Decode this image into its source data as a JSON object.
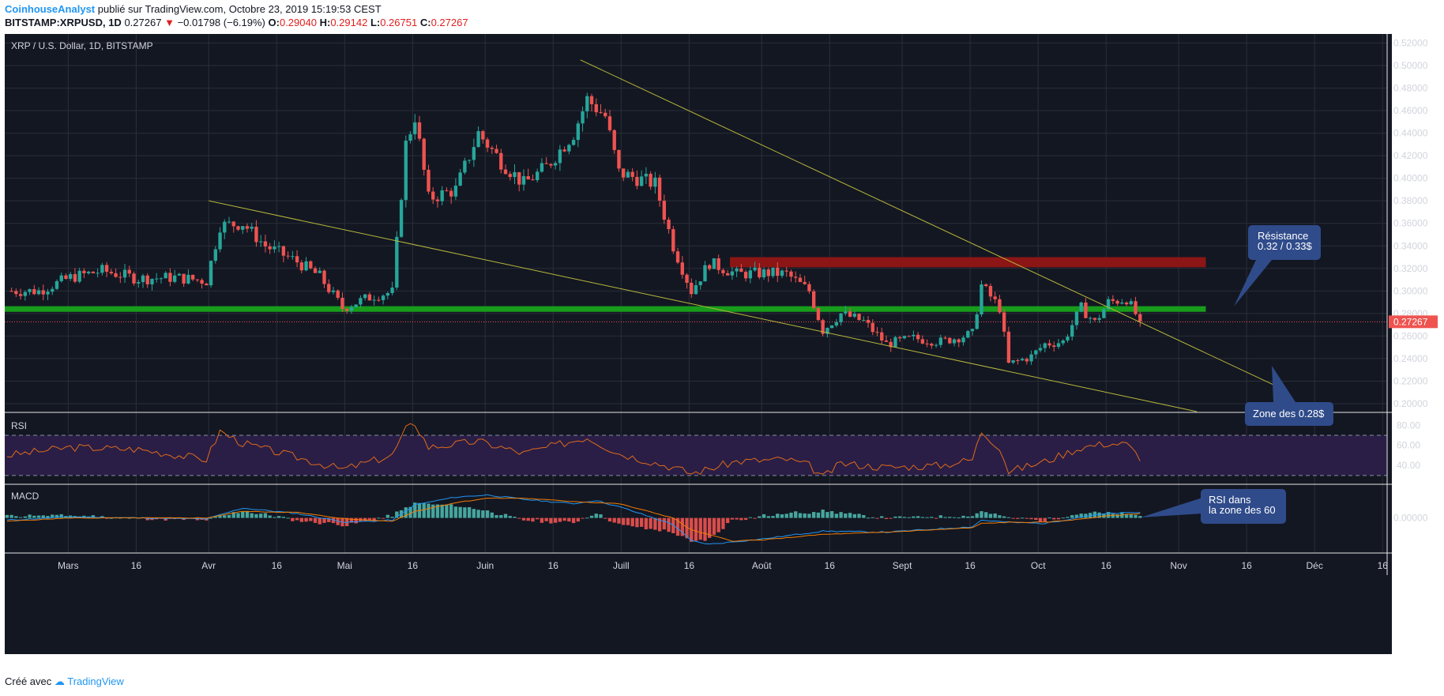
{
  "header": {
    "author": "CoinhouseAnalyst",
    "published": "publié sur TradingView.com, Octobre 23, 2019 15:19:53 CEST",
    "symbol": "BITSTAMP:XRPUSD, 1D",
    "last": "0.27267",
    "change_arrow": "▼",
    "change": "−0.01798 (−6.19%)",
    "open_label": "O:",
    "open": "0.29040",
    "high_label": "H:",
    "high": "0.29142",
    "low_label": "L:",
    "low": "0.26751",
    "close_label": "C:",
    "close": "0.27267"
  },
  "footer": {
    "created_with": "Créé avec",
    "brand": "TradingView"
  },
  "chart_data": {
    "type": "candlestick",
    "title": "XRP / U.S. Dollar, 1D, BITSTAMP",
    "background": "#131722",
    "colors": {
      "up": "#26a69a",
      "down": "#ef5350",
      "grid": "#2a2e39",
      "axis_text": "#d1d4dc",
      "support": "#179c1b",
      "resistance": "#8c1515",
      "trendline": "#b8b83a",
      "rsi": "#e06a1a",
      "macd": "#2196f3",
      "signal": "#f57c00",
      "rsi_band": "#2a1e46",
      "annotation": "#2f4b8a"
    },
    "x_axis": {
      "range": [
        "2019-02-15",
        "2019-12-17"
      ],
      "ticks": [
        {
          "date": "2019-03-01",
          "label": "Mars"
        },
        {
          "date": "2019-03-16",
          "label": "16"
        },
        {
          "date": "2019-04-01",
          "label": "Avr"
        },
        {
          "date": "2019-04-16",
          "label": "16"
        },
        {
          "date": "2019-05-01",
          "label": "Mai"
        },
        {
          "date": "2019-05-16",
          "label": "16"
        },
        {
          "date": "2019-06-01",
          "label": "Juin"
        },
        {
          "date": "2019-06-16",
          "label": "16"
        },
        {
          "date": "2019-07-01",
          "label": "Juill"
        },
        {
          "date": "2019-07-16",
          "label": "16"
        },
        {
          "date": "2019-08-01",
          "label": "Août"
        },
        {
          "date": "2019-08-16",
          "label": "16"
        },
        {
          "date": "2019-09-01",
          "label": "Sept"
        },
        {
          "date": "2019-09-16",
          "label": "16"
        },
        {
          "date": "2019-10-01",
          "label": "Oct"
        },
        {
          "date": "2019-10-16",
          "label": "16"
        },
        {
          "date": "2019-11-01",
          "label": "Nov"
        },
        {
          "date": "2019-11-16",
          "label": "16"
        },
        {
          "date": "2019-12-01",
          "label": "Déc"
        },
        {
          "date": "2019-12-16",
          "label": "16"
        }
      ]
    },
    "price_pane": {
      "ylim": [
        0.193,
        0.528
      ],
      "y_ticks": [
        "0.20000",
        "0.22000",
        "0.24000",
        "0.26000",
        "0.28000",
        "0.30000",
        "0.32000",
        "0.34000",
        "0.36000",
        "0.38000",
        "0.40000",
        "0.42000",
        "0.44000",
        "0.46000",
        "0.48000",
        "0.50000",
        "0.52000"
      ],
      "last_price": "0.27267",
      "closes": [
        [
          "2019-02-15",
          0.3
        ],
        [
          "2019-02-22",
          0.3
        ],
        [
          "2019-03-01",
          0.312
        ],
        [
          "2019-03-08",
          0.318
        ],
        [
          "2019-03-16",
          0.311
        ],
        [
          "2019-03-24",
          0.312
        ],
        [
          "2019-03-31",
          0.309
        ],
        [
          "2019-04-03",
          0.358
        ],
        [
          "2019-04-08",
          0.36
        ],
        [
          "2019-04-13",
          0.34
        ],
        [
          "2019-04-20",
          0.326
        ],
        [
          "2019-04-25",
          0.313
        ],
        [
          "2019-04-30",
          0.285
        ],
        [
          "2019-05-07",
          0.296
        ],
        [
          "2019-05-11",
          0.299
        ],
        [
          "2019-05-14",
          0.43
        ],
        [
          "2019-05-16",
          0.455
        ],
        [
          "2019-05-19",
          0.382
        ],
        [
          "2019-05-25",
          0.39
        ],
        [
          "2019-05-30",
          0.44
        ],
        [
          "2019-06-04",
          0.415
        ],
        [
          "2019-06-09",
          0.395
        ],
        [
          "2019-06-14",
          0.41
        ],
        [
          "2019-06-20",
          0.44
        ],
        [
          "2019-06-23",
          0.47
        ],
        [
          "2019-06-27",
          0.455
        ],
        [
          "2019-06-30",
          0.405
        ],
        [
          "2019-07-08",
          0.395
        ],
        [
          "2019-07-12",
          0.34
        ],
        [
          "2019-07-16",
          0.3
        ],
        [
          "2019-07-20",
          0.325
        ],
        [
          "2019-07-26",
          0.315
        ],
        [
          "2019-08-02",
          0.316
        ],
        [
          "2019-08-06",
          0.315
        ],
        [
          "2019-08-11",
          0.3
        ],
        [
          "2019-08-14",
          0.265
        ],
        [
          "2019-08-18",
          0.28
        ],
        [
          "2019-08-23",
          0.273
        ],
        [
          "2019-08-28",
          0.253
        ],
        [
          "2019-09-03",
          0.258
        ],
        [
          "2019-09-09",
          0.255
        ],
        [
          "2019-09-16",
          0.262
        ],
        [
          "2019-09-18",
          0.305
        ],
        [
          "2019-09-22",
          0.285
        ],
        [
          "2019-09-24",
          0.235
        ],
        [
          "2019-09-29",
          0.242
        ],
        [
          "2019-10-02",
          0.253
        ],
        [
          "2019-10-06",
          0.255
        ],
        [
          "2019-10-10",
          0.285
        ],
        [
          "2019-10-13",
          0.272
        ],
        [
          "2019-10-16",
          0.29
        ],
        [
          "2019-10-20",
          0.293
        ],
        [
          "2019-10-23",
          0.273
        ]
      ],
      "support_zone": {
        "label": "Zone des 0.28$",
        "price": [
          0.2815,
          0.2865
        ]
      },
      "resistance_zone": {
        "label_1": "Résistance",
        "label_2": "0.32 / 0.33$",
        "price": [
          0.321,
          0.33
        ],
        "start": "2019-07-25"
      },
      "trendlines": [
        {
          "from": [
            "2019-06-22",
            0.505
          ],
          "to": [
            "2019-11-25",
            0.211
          ]
        },
        {
          "from": [
            "2019-04-01",
            0.38
          ],
          "to": [
            "2019-11-05",
            0.193
          ]
        }
      ]
    },
    "rsi_pane": {
      "name": "RSI",
      "ylim": [
        22,
        92
      ],
      "y_ticks": [
        "80.00",
        "60.00",
        "40.00"
      ],
      "band": [
        30,
        70
      ],
      "annotation_1": "RSI dans",
      "annotation_2": "la zone des 60",
      "values": [
        [
          "2019-02-15",
          50
        ],
        [
          "2019-03-01",
          58
        ],
        [
          "2019-03-16",
          56
        ],
        [
          "2019-03-31",
          46
        ],
        [
          "2019-04-03",
          74
        ],
        [
          "2019-04-08",
          62
        ],
        [
          "2019-04-20",
          48
        ],
        [
          "2019-04-30",
          36
        ],
        [
          "2019-05-11",
          50
        ],
        [
          "2019-05-14",
          76
        ],
        [
          "2019-05-16",
          82
        ],
        [
          "2019-05-19",
          58
        ],
        [
          "2019-05-30",
          64
        ],
        [
          "2019-06-09",
          52
        ],
        [
          "2019-06-23",
          68
        ],
        [
          "2019-06-30",
          52
        ],
        [
          "2019-07-12",
          38
        ],
        [
          "2019-07-16",
          32
        ],
        [
          "2019-07-26",
          44
        ],
        [
          "2019-08-06",
          46
        ],
        [
          "2019-08-11",
          40
        ],
        [
          "2019-08-14",
          28
        ],
        [
          "2019-08-18",
          42
        ],
        [
          "2019-08-28",
          38
        ],
        [
          "2019-09-09",
          40
        ],
        [
          "2019-09-16",
          46
        ],
        [
          "2019-09-18",
          74
        ],
        [
          "2019-09-22",
          58
        ],
        [
          "2019-09-24",
          34
        ],
        [
          "2019-10-02",
          44
        ],
        [
          "2019-10-10",
          58
        ],
        [
          "2019-10-16",
          62
        ],
        [
          "2019-10-20",
          61
        ],
        [
          "2019-10-23",
          48
        ]
      ]
    },
    "macd_pane": {
      "name": "MACD",
      "ylim": [
        -0.032,
        0.03
      ],
      "y_ticks": [
        "0.00000"
      ],
      "macd": [
        [
          "2019-02-15",
          -0.002
        ],
        [
          "2019-03-01",
          0.001
        ],
        [
          "2019-03-16",
          0.0
        ],
        [
          "2019-03-31",
          -0.001
        ],
        [
          "2019-04-08",
          0.009
        ],
        [
          "2019-04-20",
          0.004
        ],
        [
          "2019-05-01",
          -0.004
        ],
        [
          "2019-05-11",
          -0.002
        ],
        [
          "2019-05-16",
          0.012
        ],
        [
          "2019-05-25",
          0.019
        ],
        [
          "2019-06-01",
          0.021
        ],
        [
          "2019-06-09",
          0.017
        ],
        [
          "2019-06-20",
          0.013
        ],
        [
          "2019-06-25",
          0.016
        ],
        [
          "2019-07-01",
          0.009
        ],
        [
          "2019-07-12",
          -0.006
        ],
        [
          "2019-07-16",
          -0.021
        ],
        [
          "2019-07-20",
          -0.024
        ],
        [
          "2019-08-01",
          -0.019
        ],
        [
          "2019-08-14",
          -0.012
        ],
        [
          "2019-08-28",
          -0.013
        ],
        [
          "2019-09-16",
          -0.008
        ],
        [
          "2019-09-18",
          -0.002
        ],
        [
          "2019-09-24",
          -0.004
        ],
        [
          "2019-10-02",
          -0.005
        ],
        [
          "2019-10-10",
          0.001
        ],
        [
          "2019-10-16",
          0.004
        ],
        [
          "2019-10-23",
          0.005
        ]
      ],
      "signal": [
        [
          "2019-02-15",
          -0.003
        ],
        [
          "2019-03-01",
          0.0
        ],
        [
          "2019-03-16",
          0.0
        ],
        [
          "2019-03-31",
          0.0
        ],
        [
          "2019-04-08",
          0.006
        ],
        [
          "2019-04-20",
          0.005
        ],
        [
          "2019-05-01",
          -0.001
        ],
        [
          "2019-05-11",
          -0.003
        ],
        [
          "2019-05-16",
          0.006
        ],
        [
          "2019-05-25",
          0.014
        ],
        [
          "2019-06-01",
          0.018
        ],
        [
          "2019-06-09",
          0.018
        ],
        [
          "2019-06-20",
          0.015
        ],
        [
          "2019-06-30",
          0.013
        ],
        [
          "2019-07-12",
          0.0
        ],
        [
          "2019-07-16",
          -0.011
        ],
        [
          "2019-07-25",
          -0.021
        ],
        [
          "2019-08-01",
          -0.02
        ],
        [
          "2019-08-14",
          -0.015
        ],
        [
          "2019-08-28",
          -0.013
        ],
        [
          "2019-09-16",
          -0.009
        ],
        [
          "2019-09-18",
          -0.005
        ],
        [
          "2019-09-24",
          -0.004
        ],
        [
          "2019-10-02",
          -0.004
        ],
        [
          "2019-10-10",
          -0.001
        ],
        [
          "2019-10-16",
          0.002
        ],
        [
          "2019-10-23",
          0.004
        ]
      ]
    }
  }
}
